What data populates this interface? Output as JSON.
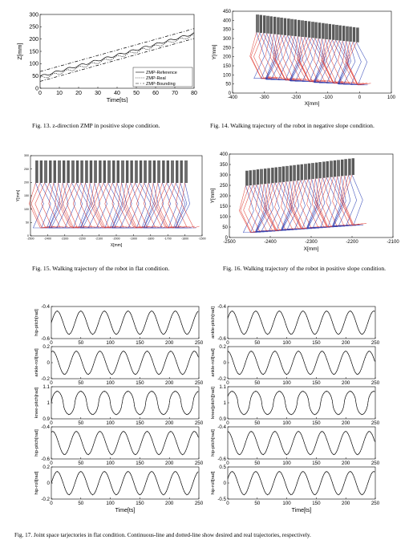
{
  "captions": {
    "fig13": "Fig. 13. z-direction ZMP in positive slope condition.",
    "fig14": "Fig. 14. Walking trajectory of the robot in negative slope condition.",
    "fig15": "Fig. 15. Walking trajectory of the robot in flat condition.",
    "fig16": "Fig. 16. Walking trajectory of the robot in positive slope condition.",
    "fig17": "Fig. 17. Joint space tarjectories in flat condition. Continuous-line and dotted-line show desired and real trajectories, respectively."
  },
  "fig13": {
    "xlabel": "Time[ts]",
    "ylabel": "Z[mm]",
    "xticks": [
      "0",
      "10",
      "20",
      "30",
      "40",
      "50",
      "60",
      "70",
      "80"
    ],
    "yticks": [
      "0",
      "50",
      "100",
      "150",
      "200",
      "250",
      "300"
    ],
    "legend": [
      "ZMP-Reference",
      "ZMP-Real",
      "ZMP-Bounding"
    ]
  },
  "fig14": {
    "xlabel": "X[mm]",
    "ylabel": "Y[mm]",
    "xticks": [
      "-400",
      "-300",
      "-200",
      "-100",
      "0",
      "100"
    ],
    "yticks": [
      "0",
      "50",
      "100",
      "150",
      "200",
      "250",
      "300",
      "350",
      "400",
      "450"
    ]
  },
  "fig15": {
    "xlabel": "X[mm]",
    "ylabel": "Y[mm]",
    "xticks": [
      "-2500",
      "-2400",
      "-2300",
      "-2200",
      "-2100",
      "-2000",
      "-1900",
      "-1800",
      "-1700",
      "-1600",
      "-1500"
    ],
    "yticks": [
      "0",
      "50",
      "100",
      "150",
      "200",
      "250",
      "300"
    ]
  },
  "fig16": {
    "xlabel": "X[mm]",
    "ylabel": "Y[mm]",
    "xticks": [
      "-2500",
      "-2400",
      "-2300",
      "-2200",
      "-2100"
    ],
    "yticks": [
      "0",
      "50",
      "100",
      "150",
      "200",
      "250",
      "300",
      "350",
      "400"
    ]
  },
  "fig17": {
    "xlabel": "Time[ts]",
    "xticks": [
      "0",
      "50",
      "100",
      "150",
      "200",
      "250"
    ],
    "left": [
      {
        "ylabel": "hip-pitch[rad]",
        "yticks": [
          "-0.4",
          "-0.6"
        ]
      },
      {
        "ylabel": "ankle-roll[rad]",
        "yticks": [
          "0.2",
          "0",
          "-0.2"
        ]
      },
      {
        "ylabel": "knee-pitch[rad]",
        "yticks": [
          "1.1",
          "1",
          "0.9"
        ]
      },
      {
        "ylabel": "hip-pitch[rad]",
        "yticks": [
          "-0.4",
          "-0.6"
        ]
      },
      {
        "ylabel": "hip-roll[rad]",
        "yticks": [
          "0.2",
          "0",
          "-0.2"
        ]
      }
    ],
    "right": [
      {
        "ylabel": "ankle-pitch[rad]",
        "yticks": [
          "-0.4",
          "-0.6"
        ]
      },
      {
        "ylabel": "ankle-roll[rad]",
        "yticks": [
          "0.2",
          "0",
          "-0.2"
        ]
      },
      {
        "ylabel": "knee[pitch][rad]",
        "yticks": [
          "1.1",
          "1",
          "0.9"
        ]
      },
      {
        "ylabel": "hip-pitch[rad]",
        "yticks": [
          "-0.4",
          "-0.6"
        ]
      },
      {
        "ylabel": "hip-roll[rad]",
        "yticks": [
          "0.5",
          "0",
          "-0.5"
        ]
      }
    ]
  }
}
